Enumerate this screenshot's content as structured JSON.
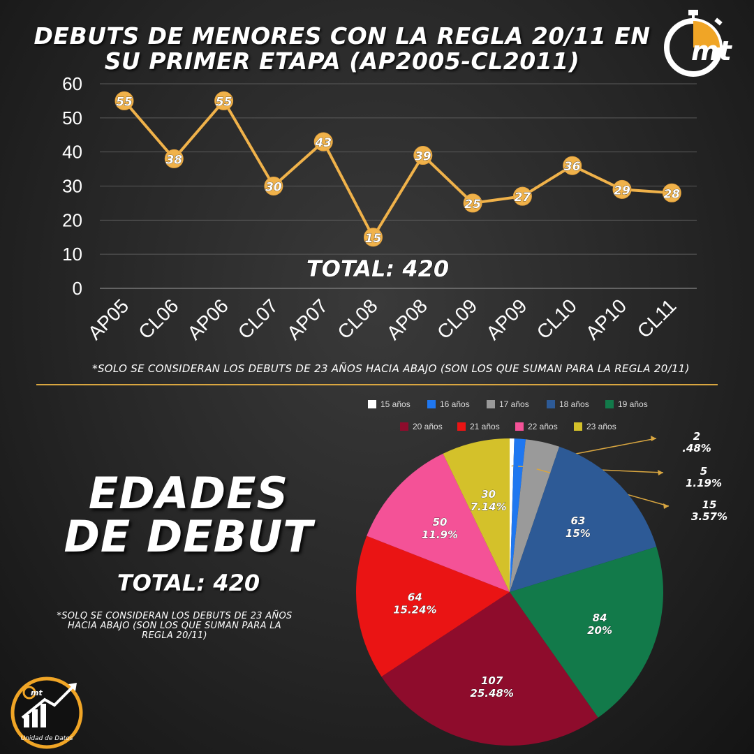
{
  "header": {
    "title_line1": "DEBUTS DE MENORES CON LA REGLA 20/11 EN",
    "title_line2": "SU PRIMER ETAPA (AP2005-CL2011)",
    "logo_text": "mt",
    "logo_icon": "stopwatch-icon"
  },
  "line_section": {
    "total_label": "TOTAL: 420",
    "note": "*SOLO SE CONSIDERAN LOS DEBUTS DE 23 AÑOS HACIA ABAJO (SON LOS QUE SUMAN PARA LA REGLA 20/11)"
  },
  "pie_section": {
    "title_line1": "EDADES",
    "title_line2": "DE DEBUT",
    "total_label": "TOTAL: 420",
    "note": "*SOLQ SE CONSIDERAN LOS DEBUTS DE 23 AÑOS HACIA ABAJO (SON LOS QUE SUMAN PARA LA REGLA 20/11)"
  },
  "badge": {
    "logo_text": "mt",
    "caption": "Unidad de Datos"
  },
  "colors": {
    "line": "#f0b24a",
    "accent": "#d9a640",
    "grid": "#5a5a5a"
  },
  "chart_data": [
    {
      "type": "line",
      "categories": [
        "AP05",
        "CL06",
        "AP06",
        "CL07",
        "AP07",
        "CL08",
        "AP08",
        "CL09",
        "AP09",
        "CL10",
        "AP10",
        "CL11"
      ],
      "values": [
        55,
        38,
        55,
        30,
        43,
        15,
        39,
        25,
        27,
        36,
        29,
        28
      ],
      "ylim": [
        0,
        60
      ],
      "yticks": [
        0,
        10,
        20,
        30,
        40,
        50,
        60
      ],
      "grid": true,
      "title": "DEBUTS DE MENORES CON LA REGLA 20/11 EN SU PRIMER ETAPA (AP2005-CL2011)"
    },
    {
      "type": "pie",
      "legend_position": "top",
      "slices": [
        {
          "label": "15 años",
          "value": 2,
          "percent": ".48%",
          "color": "#ffffff"
        },
        {
          "label": "16 años",
          "value": 5,
          "percent": "1.19%",
          "color": "#1f77f0"
        },
        {
          "label": "17 años",
          "value": 15,
          "percent": "3.57%",
          "color": "#9a9a9a"
        },
        {
          "label": "18 años",
          "value": 63,
          "percent": "15%",
          "color": "#2d5a96"
        },
        {
          "label": "19 años",
          "value": 84,
          "percent": "20%",
          "color": "#127a4a"
        },
        {
          "label": "20 años",
          "value": 107,
          "percent": "25.48%",
          "color": "#8e0c2c"
        },
        {
          "label": "21 años",
          "value": 64,
          "percent": "15.24%",
          "color": "#ea1414"
        },
        {
          "label": "22 años",
          "value": 50,
          "percent": "11.9%",
          "color": "#f45297"
        },
        {
          "label": "23 años",
          "value": 30,
          "percent": "7.14%",
          "color": "#d4c12a"
        }
      ]
    }
  ]
}
